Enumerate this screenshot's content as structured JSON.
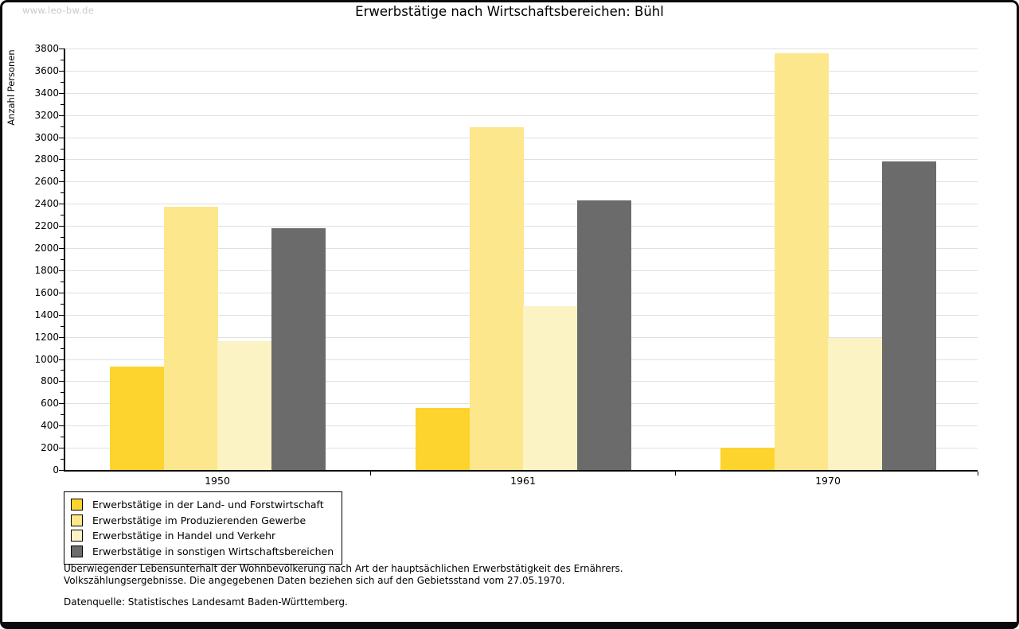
{
  "watermark": "www.leo-bw.de",
  "title": "Erwerbstätige nach Wirtschaftsbereichen: Bühl",
  "chart_data": {
    "type": "bar",
    "title": "Erwerbstätige nach Wirtschaftsbereichen: Bühl",
    "ylabel": "Anzahl Personen",
    "xlabel": "",
    "ylim": [
      0,
      3800
    ],
    "ytick_step": 200,
    "minor_tick_step": 100,
    "grid": true,
    "legend_position": "bottom-left",
    "categories": [
      "1950",
      "1961",
      "1970"
    ],
    "series": [
      {
        "name": "Erwerbstätige in der Land- und Forstwirtschaft",
        "color": "#FCD42D",
        "values": [
          930,
          560,
          200
        ]
      },
      {
        "name": "Erwerbstätige im Produzierenden Gewerbe",
        "color": "#FCE78C",
        "values": [
          2370,
          3090,
          3760
        ]
      },
      {
        "name": "Erwerbstätige in Handel und Verkehr",
        "color": "#FCF3C4",
        "values": [
          1160,
          1480,
          1190
        ]
      },
      {
        "name": "Erwerbstätige in sonstigen Wirtschaftsbereichen",
        "color": "#6B6B6B",
        "values": [
          2180,
          2430,
          2780
        ]
      }
    ]
  },
  "footer": {
    "line1": "Überwiegender Lebensunterhalt der Wohnbevölkerung nach Art der hauptsächlichen Erwerbstätigkeit des Ernährers.",
    "line2": "Volkszählungsergebnisse. Die angegebenen Daten beziehen sich auf den Gebietsstand vom 27.05.1970.",
    "source": "Datenquelle: Statistisches Landesamt Baden-Württemberg."
  }
}
